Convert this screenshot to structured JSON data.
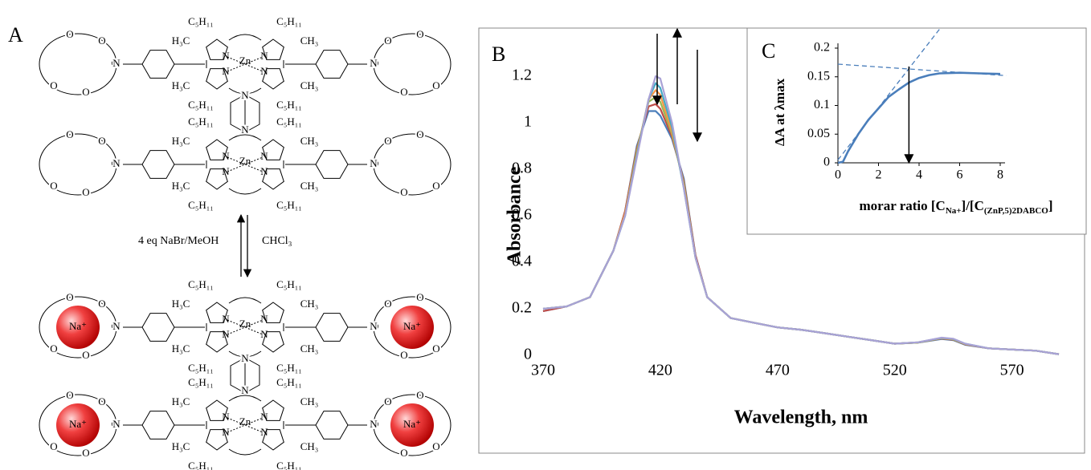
{
  "scheme": {
    "panel_label": "A",
    "reagent": "4 eq NaBr/MeOH",
    "solvent": "CHCl₃",
    "atoms": {
      "zn": "Zn",
      "n": "N",
      "o": "O",
      "na": "Na⁺",
      "pentyl": "C₅H₁₁",
      "methyl_left": "H₃C",
      "methyl_right": "CH₃"
    }
  },
  "chart_data": [
    {
      "type": "line",
      "panel_label": "B",
      "x_label": "Wavelength, nm",
      "y_label": "Absorbance",
      "xlim": [
        370,
        590
      ],
      "xticks": [
        370,
        420,
        470,
        520,
        570
      ],
      "ylim": [
        0,
        1.2
      ],
      "yticks": [
        0,
        0.2,
        0.4,
        0.6,
        0.8,
        1,
        1.2
      ],
      "x": [
        370,
        380,
        390,
        400,
        405,
        410,
        415,
        418,
        420,
        425,
        430,
        435,
        440,
        450,
        460,
        470,
        480,
        490,
        500,
        510,
        520,
        530,
        540,
        545,
        550,
        560,
        570,
        580,
        590
      ],
      "series": [
        {
          "color": "#4a7ebb",
          "values": [
            0.19,
            0.21,
            0.25,
            0.45,
            0.62,
            0.9,
            1.05,
            1.05,
            1.03,
            0.93,
            0.76,
            0.43,
            0.25,
            0.16,
            0.14,
            0.12,
            0.11,
            0.095,
            0.08,
            0.065,
            0.05,
            0.055,
            0.07,
            0.065,
            0.045,
            0.03,
            0.025,
            0.02,
            0.005
          ]
        },
        {
          "color": "#be4b48",
          "values": [
            0.19,
            0.21,
            0.25,
            0.45,
            0.62,
            0.89,
            1.07,
            1.08,
            1.06,
            0.94,
            0.75,
            0.43,
            0.25,
            0.16,
            0.14,
            0.12,
            0.11,
            0.095,
            0.08,
            0.065,
            0.05,
            0.055,
            0.072,
            0.067,
            0.047,
            0.03,
            0.025,
            0.02,
            0.005
          ]
        },
        {
          "color": "#98b954",
          "values": [
            0.2,
            0.21,
            0.25,
            0.45,
            0.61,
            0.88,
            1.09,
            1.11,
            1.09,
            0.95,
            0.74,
            0.42,
            0.25,
            0.16,
            0.14,
            0.12,
            0.11,
            0.095,
            0.08,
            0.065,
            0.05,
            0.055,
            0.073,
            0.068,
            0.048,
            0.03,
            0.025,
            0.02,
            0.005
          ]
        },
        {
          "color": "#f79646",
          "values": [
            0.2,
            0.21,
            0.25,
            0.45,
            0.61,
            0.87,
            1.1,
            1.14,
            1.12,
            0.96,
            0.73,
            0.42,
            0.25,
            0.16,
            0.14,
            0.12,
            0.11,
            0.095,
            0.08,
            0.065,
            0.05,
            0.056,
            0.074,
            0.069,
            0.049,
            0.03,
            0.025,
            0.02,
            0.005
          ]
        },
        {
          "color": "#46aac5",
          "values": [
            0.2,
            0.21,
            0.25,
            0.45,
            0.6,
            0.86,
            1.1,
            1.17,
            1.15,
            0.98,
            0.72,
            0.42,
            0.25,
            0.16,
            0.14,
            0.12,
            0.11,
            0.095,
            0.08,
            0.065,
            0.05,
            0.056,
            0.075,
            0.07,
            0.05,
            0.03,
            0.025,
            0.02,
            0.005
          ]
        },
        {
          "color": "#a9a2d6",
          "values": [
            0.2,
            0.21,
            0.25,
            0.45,
            0.6,
            0.85,
            1.1,
            1.2,
            1.19,
            1.0,
            0.72,
            0.42,
            0.25,
            0.16,
            0.14,
            0.12,
            0.11,
            0.095,
            0.08,
            0.065,
            0.05,
            0.056,
            0.076,
            0.071,
            0.05,
            0.03,
            0.025,
            0.02,
            0.005
          ]
        }
      ]
    },
    {
      "type": "line",
      "panel_label": "C",
      "y_label": "ΔA at λmax",
      "x_label_parts": [
        "morar ratio [C",
        "Na+",
        "]/[C",
        "(ZnP,5)2DABCO",
        "]"
      ],
      "xlim": [
        0,
        8
      ],
      "xticks": [
        0,
        2,
        4,
        6,
        8
      ],
      "ylim": [
        0,
        0.2
      ],
      "yticks": [
        0,
        0.05,
        0.1,
        0.15,
        0.2
      ],
      "series": [
        {
          "color": "#4a7ebb",
          "style": "solid",
          "x": [
            0,
            0.25,
            0.5,
            1,
            1.5,
            2,
            2.5,
            3,
            3.5,
            4,
            4.5,
            5,
            6,
            7,
            8
          ],
          "values": [
            0,
            0.002,
            0.02,
            0.05,
            0.075,
            0.095,
            0.115,
            0.128,
            0.14,
            0.148,
            0.153,
            0.156,
            0.157,
            0.156,
            0.155
          ]
        },
        {
          "color": "#4a7ebb",
          "style": "dashed",
          "x": [
            0,
            5.05
          ],
          "values": [
            0.005,
            0.235
          ]
        },
        {
          "color": "#4a7ebb",
          "style": "dashed",
          "x": [
            0,
            8.3
          ],
          "values": [
            0.172,
            0.152
          ]
        }
      ],
      "arrow": {
        "x": 3.5,
        "from": 0.168,
        "to": 0
      }
    }
  ]
}
